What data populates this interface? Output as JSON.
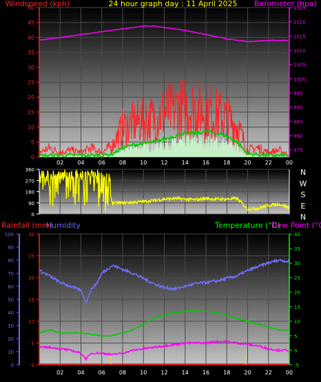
{
  "header": {
    "title": "24 hour graph day : 11 April 2025"
  },
  "colors": {
    "wind": "#ff1010",
    "gust": "#ff2020",
    "avg": "#00cc00",
    "speed": "#c8f0c8",
    "baro": "#ff00ff",
    "dir": "#ffff00",
    "hum": "#7070ff",
    "rain": "#ff2020",
    "temp": "#00cc00",
    "dew": "#ff00ff",
    "tempaxis": "#00ff00",
    "humaxis": "#6a6aff"
  },
  "chart_data": [
    {
      "type": "line",
      "id": "wind-baro",
      "title": "24 hour graph day : 11 April 2025",
      "ylabel": "Windspeed (kph)",
      "y2label": "Barometer (hpa)",
      "x_ticks": [
        "02",
        "04",
        "06",
        "08",
        "10",
        "12",
        "14",
        "16",
        "18",
        "20",
        "22",
        "00"
      ],
      "ylim": [
        0,
        50
      ],
      "y_ticks": [
        0,
        5,
        10,
        15,
        20,
        25,
        30,
        35,
        40,
        45,
        50
      ],
      "y2lim": [
        972.5,
        1025
      ],
      "y2_ticks": [
        975,
        980,
        985,
        990,
        995,
        1000,
        1005,
        1010,
        1015,
        1020,
        1025
      ],
      "grid": true,
      "series": [
        {
          "key": "gust",
          "hours": [
            0,
            1,
            2,
            3,
            4,
            5,
            6,
            7,
            8,
            9,
            10,
            11,
            12,
            13,
            14,
            15,
            16,
            17,
            18,
            19,
            20,
            21,
            22,
            23,
            24
          ],
          "values": [
            2,
            4,
            2,
            3,
            2,
            4,
            2,
            5,
            13,
            15,
            16,
            17,
            20,
            21,
            22,
            22,
            21,
            19,
            17,
            14,
            3,
            4,
            2,
            3,
            1
          ]
        },
        {
          "key": "avg",
          "hours": [
            0,
            2,
            4,
            6,
            7,
            8,
            9,
            10,
            11,
            12,
            13,
            14,
            15,
            16,
            17,
            18,
            19,
            19.5,
            20,
            22,
            24
          ],
          "values": [
            0.5,
            0.5,
            0.5,
            0.5,
            1,
            3,
            4,
            4.5,
            5,
            6,
            7,
            8,
            8,
            8.5,
            8,
            7,
            5,
            3,
            1,
            0.5,
            0.5
          ]
        },
        {
          "key": "speed",
          "hours": [
            0,
            2,
            4,
            6,
            7,
            8,
            9,
            10,
            11,
            12,
            13,
            14,
            15,
            16,
            17,
            18,
            19,
            20,
            22,
            24
          ],
          "values": [
            0,
            0.5,
            0.5,
            0.5,
            1,
            2,
            3,
            3,
            3.5,
            4,
            4.5,
            5,
            5,
            5,
            5,
            4,
            3,
            1,
            0,
            0
          ]
        },
        {
          "key": "baro",
          "hours": [
            0,
            2,
            4,
            6,
            8,
            10,
            11,
            12,
            14,
            16,
            18,
            19,
            20,
            22,
            24
          ],
          "values": [
            1013.5,
            1014.5,
            1015.5,
            1016.5,
            1017.5,
            1018.5,
            1018.5,
            1018,
            1017,
            1015.5,
            1014,
            1013.5,
            1013,
            1013.5,
            1013.5
          ]
        }
      ]
    },
    {
      "type": "scatter",
      "id": "wind-dir",
      "ylabel": "Wind direction",
      "ylim": [
        0,
        360
      ],
      "y_ticks": [
        0,
        90,
        180,
        270,
        360
      ],
      "compass": [
        "N",
        "W",
        "S",
        "E",
        "N"
      ],
      "grid": true,
      "series": [
        {
          "key": "dir",
          "hours": [
            0,
            0.5,
            1,
            1.5,
            2,
            2.5,
            3,
            3.5,
            4,
            4.5,
            5,
            5.5,
            6,
            6.5,
            7,
            8,
            9,
            10,
            11,
            12,
            13,
            14,
            15,
            16,
            17,
            18,
            19,
            20,
            21,
            22,
            23,
            24
          ],
          "values": [
            320,
            300,
            120,
            340,
            150,
            30,
            330,
            150,
            340,
            310,
            150,
            330,
            320,
            300,
            90,
            90,
            95,
            100,
            110,
            120,
            125,
            120,
            115,
            125,
            120,
            120,
            125,
            40,
            45,
            70,
            80,
            50
          ]
        }
      ]
    },
    {
      "type": "line",
      "id": "rain-hum-temp",
      "ylabel": "Rainfall (mm)",
      "y2label": "Humidity",
      "y3label": "Temperature (°C)",
      "y4label": "Dew Point (°C)",
      "x_ticks": [
        "02",
        "04",
        "06",
        "08",
        "10",
        "12",
        "14",
        "16",
        "18",
        "20",
        "22",
        "00"
      ],
      "hum_lim": [
        0,
        100
      ],
      "hum_ticks": [
        0,
        10,
        20,
        30,
        40,
        50,
        60,
        70,
        80,
        90,
        100
      ],
      "rain_lim": [
        0,
        30
      ],
      "rain_ticks": [
        0,
        5,
        10,
        15,
        20,
        25,
        30
      ],
      "temp_lim": [
        -5,
        40
      ],
      "temp_ticks": [
        -5,
        0,
        5,
        10,
        15,
        20,
        25,
        30,
        35,
        40
      ],
      "grid": true,
      "series": [
        {
          "key": "hum",
          "hours": [
            0,
            1,
            2,
            3,
            4,
            4.5,
            5,
            5.5,
            6,
            7,
            8,
            9,
            10,
            11,
            12,
            13,
            14,
            15,
            16,
            17,
            18,
            19,
            20,
            21,
            22,
            23,
            24
          ],
          "values": [
            72,
            68,
            63,
            60,
            57,
            48,
            58,
            62,
            70,
            76,
            73,
            70,
            66,
            62,
            59,
            58,
            60,
            62,
            63,
            64,
            66,
            68,
            72,
            75,
            78,
            80,
            79
          ]
        },
        {
          "key": "temp",
          "hours": [
            0,
            1,
            2,
            3,
            4,
            5,
            6,
            7,
            8,
            9,
            10,
            11,
            12,
            13,
            14,
            15,
            16,
            17,
            18,
            19,
            20,
            21,
            22,
            23,
            24
          ],
          "values": [
            6,
            7,
            6,
            6,
            6,
            5.5,
            5,
            5,
            6,
            7,
            9,
            11,
            12,
            13,
            13.5,
            13.5,
            13.5,
            13,
            12,
            11,
            10,
            9,
            8,
            7,
            7
          ]
        },
        {
          "key": "dew",
          "hours": [
            0,
            1,
            2,
            3,
            4,
            4.5,
            5,
            6,
            7,
            8,
            9,
            10,
            11,
            12,
            13,
            14,
            15,
            16,
            17,
            18,
            19,
            20,
            21,
            22,
            23,
            24
          ],
          "values": [
            1,
            1,
            0.5,
            0,
            -1,
            -3,
            -1,
            -1,
            -1.5,
            -1,
            0,
            0.5,
            1,
            1.5,
            2,
            2.5,
            2.5,
            2.5,
            3,
            3,
            2.5,
            2,
            1.5,
            0.5,
            0,
            0
          ]
        },
        {
          "key": "rain",
          "hours": [
            0,
            24
          ],
          "values": [
            0,
            0
          ]
        }
      ],
      "events": [
        6.9,
        19.8
      ]
    }
  ],
  "labels": {
    "windspeed": "Windspeed (kph)",
    "barometer": "Barometer (hpa)",
    "rainfall": "Rainfall (mm)",
    "humidity": "Humidity",
    "temperature": "Temperature (°C)",
    "dewpoint": "Dew Point (°C)"
  }
}
